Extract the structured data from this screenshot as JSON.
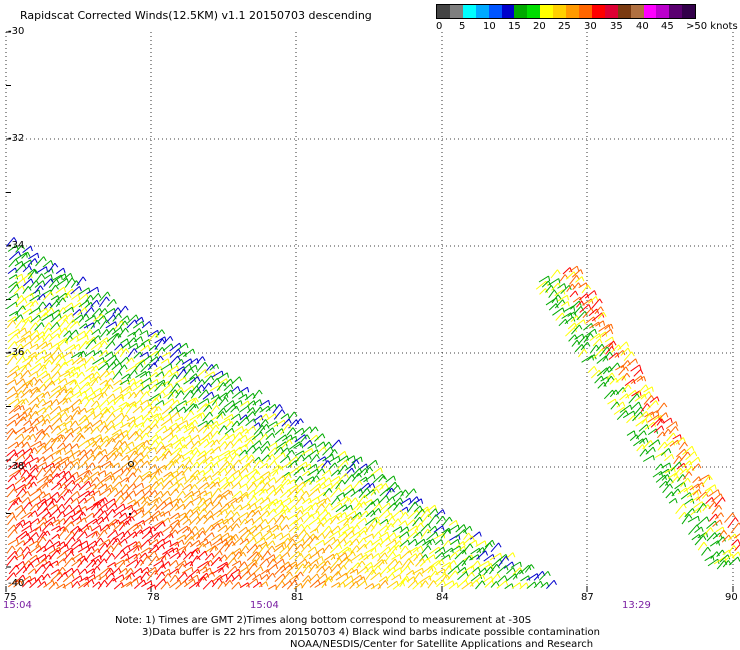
{
  "title": "Rapidscat Corrected Winds(12.5KM) v1.1 20150703 descending",
  "colorbar": {
    "colors": [
      "#444444",
      "#7f7f7f",
      "#00ffff",
      "#00aaff",
      "#0055ff",
      "#0000cc",
      "#00aa00",
      "#00dd00",
      "#ffff00",
      "#ffd000",
      "#ff9a00",
      "#ff6600",
      "#ff0000",
      "#dd0033",
      "#7a3a10",
      "#b07040",
      "#ff00ff",
      "#bb00cc",
      "#5a0070",
      "#32004a"
    ],
    "labels": [
      "0",
      "5",
      "10",
      "15",
      "20",
      "25",
      "30",
      "35",
      "40",
      "45",
      ">50 knots"
    ]
  },
  "map": {
    "y_ticks": [
      "-30",
      "-32",
      "-34",
      "-36",
      "-38",
      "-40"
    ],
    "x_ticks": [
      "75",
      "78",
      "81",
      "84",
      "87",
      "90"
    ],
    "times": [
      "15:04",
      "15:04",
      "13:29"
    ]
  },
  "notes": [
    "Note: 1) Times are GMT 2)Times along bottom correspond to measurement at -30S",
    "3)Data buffer is 22 hrs from 20150703 4) Black wind barbs indicate possible contamination",
    "NOAA/NESDIS/Center for Satellite Applications and Research"
  ]
}
